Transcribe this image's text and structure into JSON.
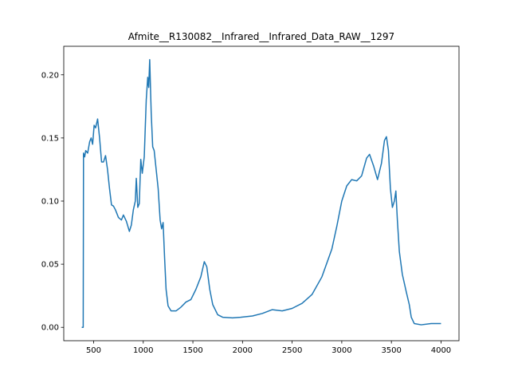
{
  "chart_data": {
    "type": "line",
    "title": "Afmite__R130082__Infrared__Infrared_Data_RAW__1297",
    "x": [
      380,
      395,
      398,
      410,
      420,
      440,
      460,
      475,
      490,
      505,
      520,
      540,
      560,
      580,
      600,
      620,
      640,
      660,
      680,
      700,
      720,
      750,
      780,
      800,
      830,
      860,
      880,
      900,
      920,
      930,
      945,
      960,
      975,
      990,
      1010,
      1030,
      1045,
      1055,
      1065,
      1080,
      1095,
      1110,
      1130,
      1150,
      1170,
      1185,
      1200,
      1215,
      1230,
      1250,
      1280,
      1330,
      1380,
      1430,
      1480,
      1530,
      1580,
      1615,
      1640,
      1670,
      1700,
      1750,
      1800,
      1900,
      1980,
      2100,
      2200,
      2300,
      2400,
      2500,
      2600,
      2700,
      2800,
      2900,
      2950,
      3000,
      3050,
      3100,
      3150,
      3200,
      3250,
      3280,
      3320,
      3360,
      3400,
      3430,
      3450,
      3470,
      3490,
      3510,
      3530,
      3545,
      3560,
      3580,
      3610,
      3650,
      3680,
      3700,
      3730,
      3800,
      3900,
      4000
    ],
    "series": [
      {
        "color": "#1f77b4",
        "values": [
          0.0,
          0.0,
          0.138,
          0.135,
          0.14,
          0.138,
          0.147,
          0.15,
          0.145,
          0.16,
          0.158,
          0.165,
          0.15,
          0.131,
          0.131,
          0.136,
          0.125,
          0.11,
          0.097,
          0.096,
          0.093,
          0.087,
          0.085,
          0.089,
          0.084,
          0.076,
          0.081,
          0.093,
          0.1,
          0.118,
          0.095,
          0.098,
          0.133,
          0.122,
          0.135,
          0.18,
          0.198,
          0.19,
          0.212,
          0.17,
          0.143,
          0.14,
          0.125,
          0.11,
          0.085,
          0.078,
          0.083,
          0.055,
          0.03,
          0.017,
          0.013,
          0.013,
          0.016,
          0.02,
          0.022,
          0.03,
          0.04,
          0.052,
          0.048,
          0.03,
          0.018,
          0.01,
          0.008,
          0.0075,
          0.008,
          0.009,
          0.011,
          0.014,
          0.013,
          0.015,
          0.019,
          0.026,
          0.04,
          0.062,
          0.08,
          0.1,
          0.112,
          0.117,
          0.116,
          0.12,
          0.134,
          0.137,
          0.128,
          0.117,
          0.13,
          0.148,
          0.151,
          0.14,
          0.11,
          0.095,
          0.1,
          0.108,
          0.085,
          0.06,
          0.042,
          0.028,
          0.018,
          0.008,
          0.003,
          0.002,
          0.003,
          0.003
        ]
      }
    ],
    "xlim": [
      199,
      4181
    ],
    "xticks": [
      500,
      1000,
      1500,
      2000,
      2500,
      3000,
      3500,
      4000
    ],
    "ylim": [
      -0.0106,
      0.2226
    ],
    "yticks": [
      {
        "value": 0,
        "label": "0.00"
      },
      {
        "value": 0.05,
        "label": "0.05"
      },
      {
        "value": 0.1,
        "label": "0.10"
      },
      {
        "value": 0.15,
        "label": "0.15"
      },
      {
        "value": 0.2,
        "label": "0.20"
      }
    ]
  }
}
